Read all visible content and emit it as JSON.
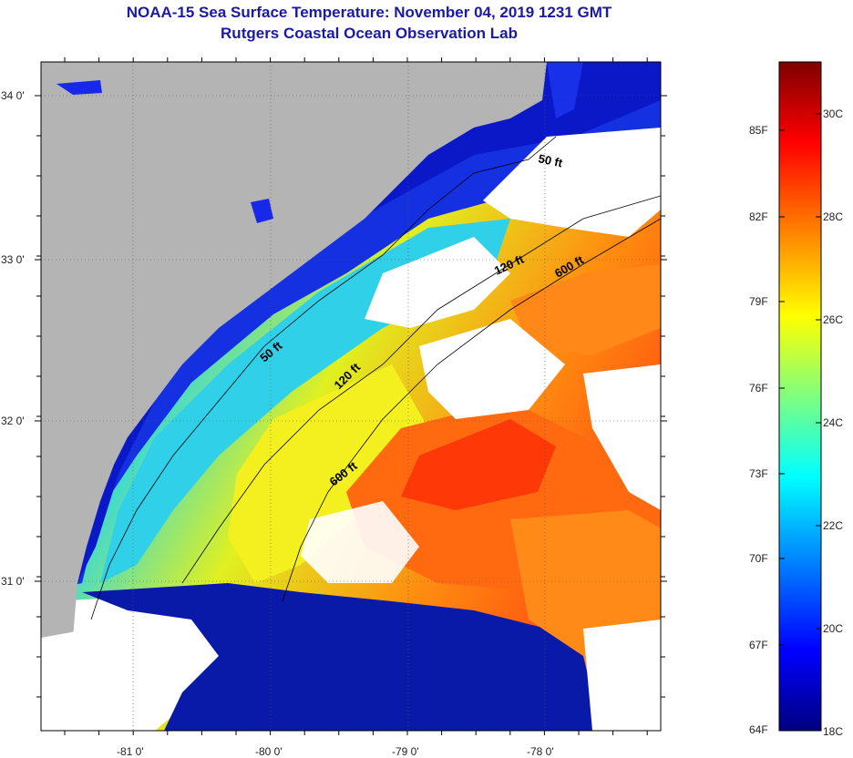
{
  "title": "NOAA-15 Sea Surface Temperature:  November 04, 2019 1231 GMT",
  "subtitle": "Rutgers Coastal Ocean Observation Lab",
  "lat_labels": [
    "34 0'",
    "33 0'",
    "32 0'",
    "31 0'"
  ],
  "lon_labels": [
    "-81 0'",
    "-80 0'",
    "-79 0'",
    "-78 0'"
  ],
  "contour_labels": [
    "50 ft",
    "120 ft",
    "600 ft",
    "50 ft",
    "120 ft",
    "600 ft"
  ],
  "colorbar": {
    "fahrenheit": [
      "85F",
      "82F",
      "79F",
      "76F",
      "73F",
      "70F",
      "67F",
      "64F"
    ],
    "celsius": [
      "30C",
      "28C",
      "26C",
      "24C",
      "22C",
      "20C",
      "18C"
    ]
  },
  "colors": {
    "land": "#b4b4b4",
    "cloud": "#ffffff",
    "title": "#1a1aa6",
    "palette": [
      "#00007f",
      "#0000ff",
      "#007fff",
      "#00ffff",
      "#7fff7f",
      "#ffff00",
      "#ff7f00",
      "#ff0000",
      "#7f0000"
    ]
  }
}
